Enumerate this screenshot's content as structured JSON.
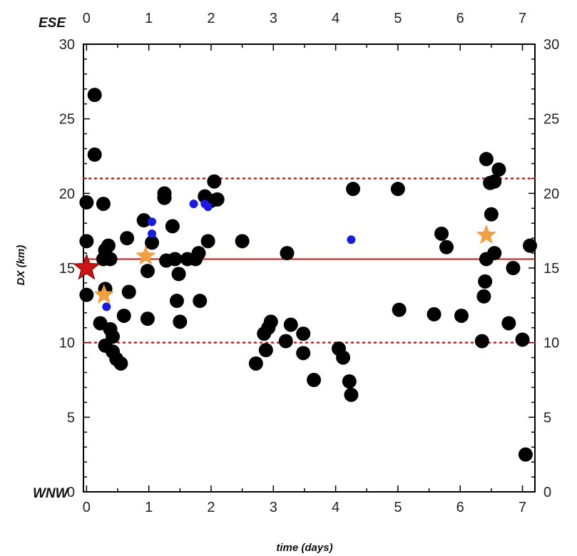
{
  "chart_data": {
    "type": "scatter",
    "title": "",
    "xlabel": "time (days)",
    "ylabel": "DX (km)",
    "direction_labels": {
      "top": "ESE",
      "bottom": "WNW"
    },
    "xlim": [
      -0.05,
      7.2
    ],
    "ylim": [
      0,
      30
    ],
    "x_ticks": [
      "0",
      "1",
      "2",
      "3",
      "4",
      "5",
      "6",
      "7"
    ],
    "y_ticks": [
      "0",
      "5",
      "10",
      "15",
      "20",
      "25",
      "30"
    ],
    "reference_lines": [
      {
        "kind": "solid",
        "y": 15.6,
        "color": "#c01818"
      },
      {
        "kind": "dotted",
        "y": 21.0,
        "color": "#c01818"
      },
      {
        "kind": "dotted",
        "y": 10.0,
        "color": "#c01818"
      }
    ],
    "colors": {
      "large_dots": "#000000",
      "small_dots": "#1a1ae0",
      "main_star": "#cc1414",
      "secondary_stars": "#f0a040"
    },
    "series": [
      {
        "marker": "large-black-dot",
        "points": [
          [
            0.0,
            19.4
          ],
          [
            0.0,
            16.8
          ],
          [
            0.0,
            13.2
          ],
          [
            0.13,
            26.6
          ],
          [
            0.13,
            22.6
          ],
          [
            0.22,
            11.3
          ],
          [
            0.27,
            19.3
          ],
          [
            0.27,
            15.6
          ],
          [
            0.3,
            16.2
          ],
          [
            0.3,
            13.6
          ],
          [
            0.3,
            9.8
          ],
          [
            0.35,
            16.5
          ],
          [
            0.38,
            15.6
          ],
          [
            0.38,
            10.9
          ],
          [
            0.42,
            9.4
          ],
          [
            0.42,
            10.4
          ],
          [
            0.48,
            8.9
          ],
          [
            0.55,
            8.6
          ],
          [
            0.6,
            11.8
          ],
          [
            0.65,
            17.0
          ],
          [
            0.68,
            13.4
          ],
          [
            0.92,
            18.2
          ],
          [
            0.98,
            14.8
          ],
          [
            0.98,
            11.6
          ],
          [
            1.05,
            16.7
          ],
          [
            1.25,
            20.0
          ],
          [
            1.25,
            19.7
          ],
          [
            1.28,
            15.5
          ],
          [
            1.38,
            17.8
          ],
          [
            1.42,
            15.6
          ],
          [
            1.45,
            12.8
          ],
          [
            1.48,
            14.6
          ],
          [
            1.5,
            11.4
          ],
          [
            1.62,
            15.6
          ],
          [
            1.75,
            15.6
          ],
          [
            1.8,
            16.0
          ],
          [
            1.82,
            12.8
          ],
          [
            1.9,
            19.8
          ],
          [
            1.95,
            16.8
          ],
          [
            2.0,
            19.5
          ],
          [
            2.05,
            20.8
          ],
          [
            2.1,
            19.6
          ],
          [
            2.5,
            16.8
          ],
          [
            2.72,
            8.6
          ],
          [
            2.85,
            10.6
          ],
          [
            2.88,
            9.5
          ],
          [
            2.92,
            11.0
          ],
          [
            2.96,
            11.4
          ],
          [
            3.2,
            10.1
          ],
          [
            3.22,
            16.0
          ],
          [
            3.28,
            11.2
          ],
          [
            3.48,
            9.3
          ],
          [
            3.48,
            10.6
          ],
          [
            3.65,
            7.5
          ],
          [
            4.05,
            9.6
          ],
          [
            4.12,
            9.0
          ],
          [
            4.22,
            7.4
          ],
          [
            4.25,
            6.5
          ],
          [
            4.28,
            20.3
          ],
          [
            5.0,
            20.3
          ],
          [
            5.02,
            12.2
          ],
          [
            5.58,
            11.9
          ],
          [
            5.7,
            17.3
          ],
          [
            5.78,
            16.4
          ],
          [
            6.02,
            11.8
          ],
          [
            6.35,
            10.1
          ],
          [
            6.38,
            13.1
          ],
          [
            6.4,
            14.1
          ],
          [
            6.42,
            15.6
          ],
          [
            6.42,
            22.3
          ],
          [
            6.48,
            20.7
          ],
          [
            6.5,
            18.6
          ],
          [
            6.55,
            16.0
          ],
          [
            6.55,
            20.8
          ],
          [
            6.62,
            21.6
          ],
          [
            6.78,
            11.3
          ],
          [
            6.85,
            15.0
          ],
          [
            7.0,
            10.2
          ],
          [
            7.05,
            2.5
          ],
          [
            7.12,
            16.5
          ]
        ]
      },
      {
        "marker": "small-blue-dot",
        "points": [
          [
            0.32,
            12.4
          ],
          [
            1.05,
            18.1
          ],
          [
            1.05,
            17.3
          ],
          [
            1.72,
            19.3
          ],
          [
            1.9,
            19.3
          ],
          [
            1.95,
            19.1
          ],
          [
            4.25,
            16.9
          ]
        ]
      },
      {
        "marker": "red-star",
        "points": [
          [
            0.0,
            15.0
          ]
        ]
      },
      {
        "marker": "orange-star",
        "points": [
          [
            0.28,
            13.2
          ],
          [
            0.95,
            15.8
          ],
          [
            6.42,
            17.2
          ]
        ]
      }
    ]
  }
}
